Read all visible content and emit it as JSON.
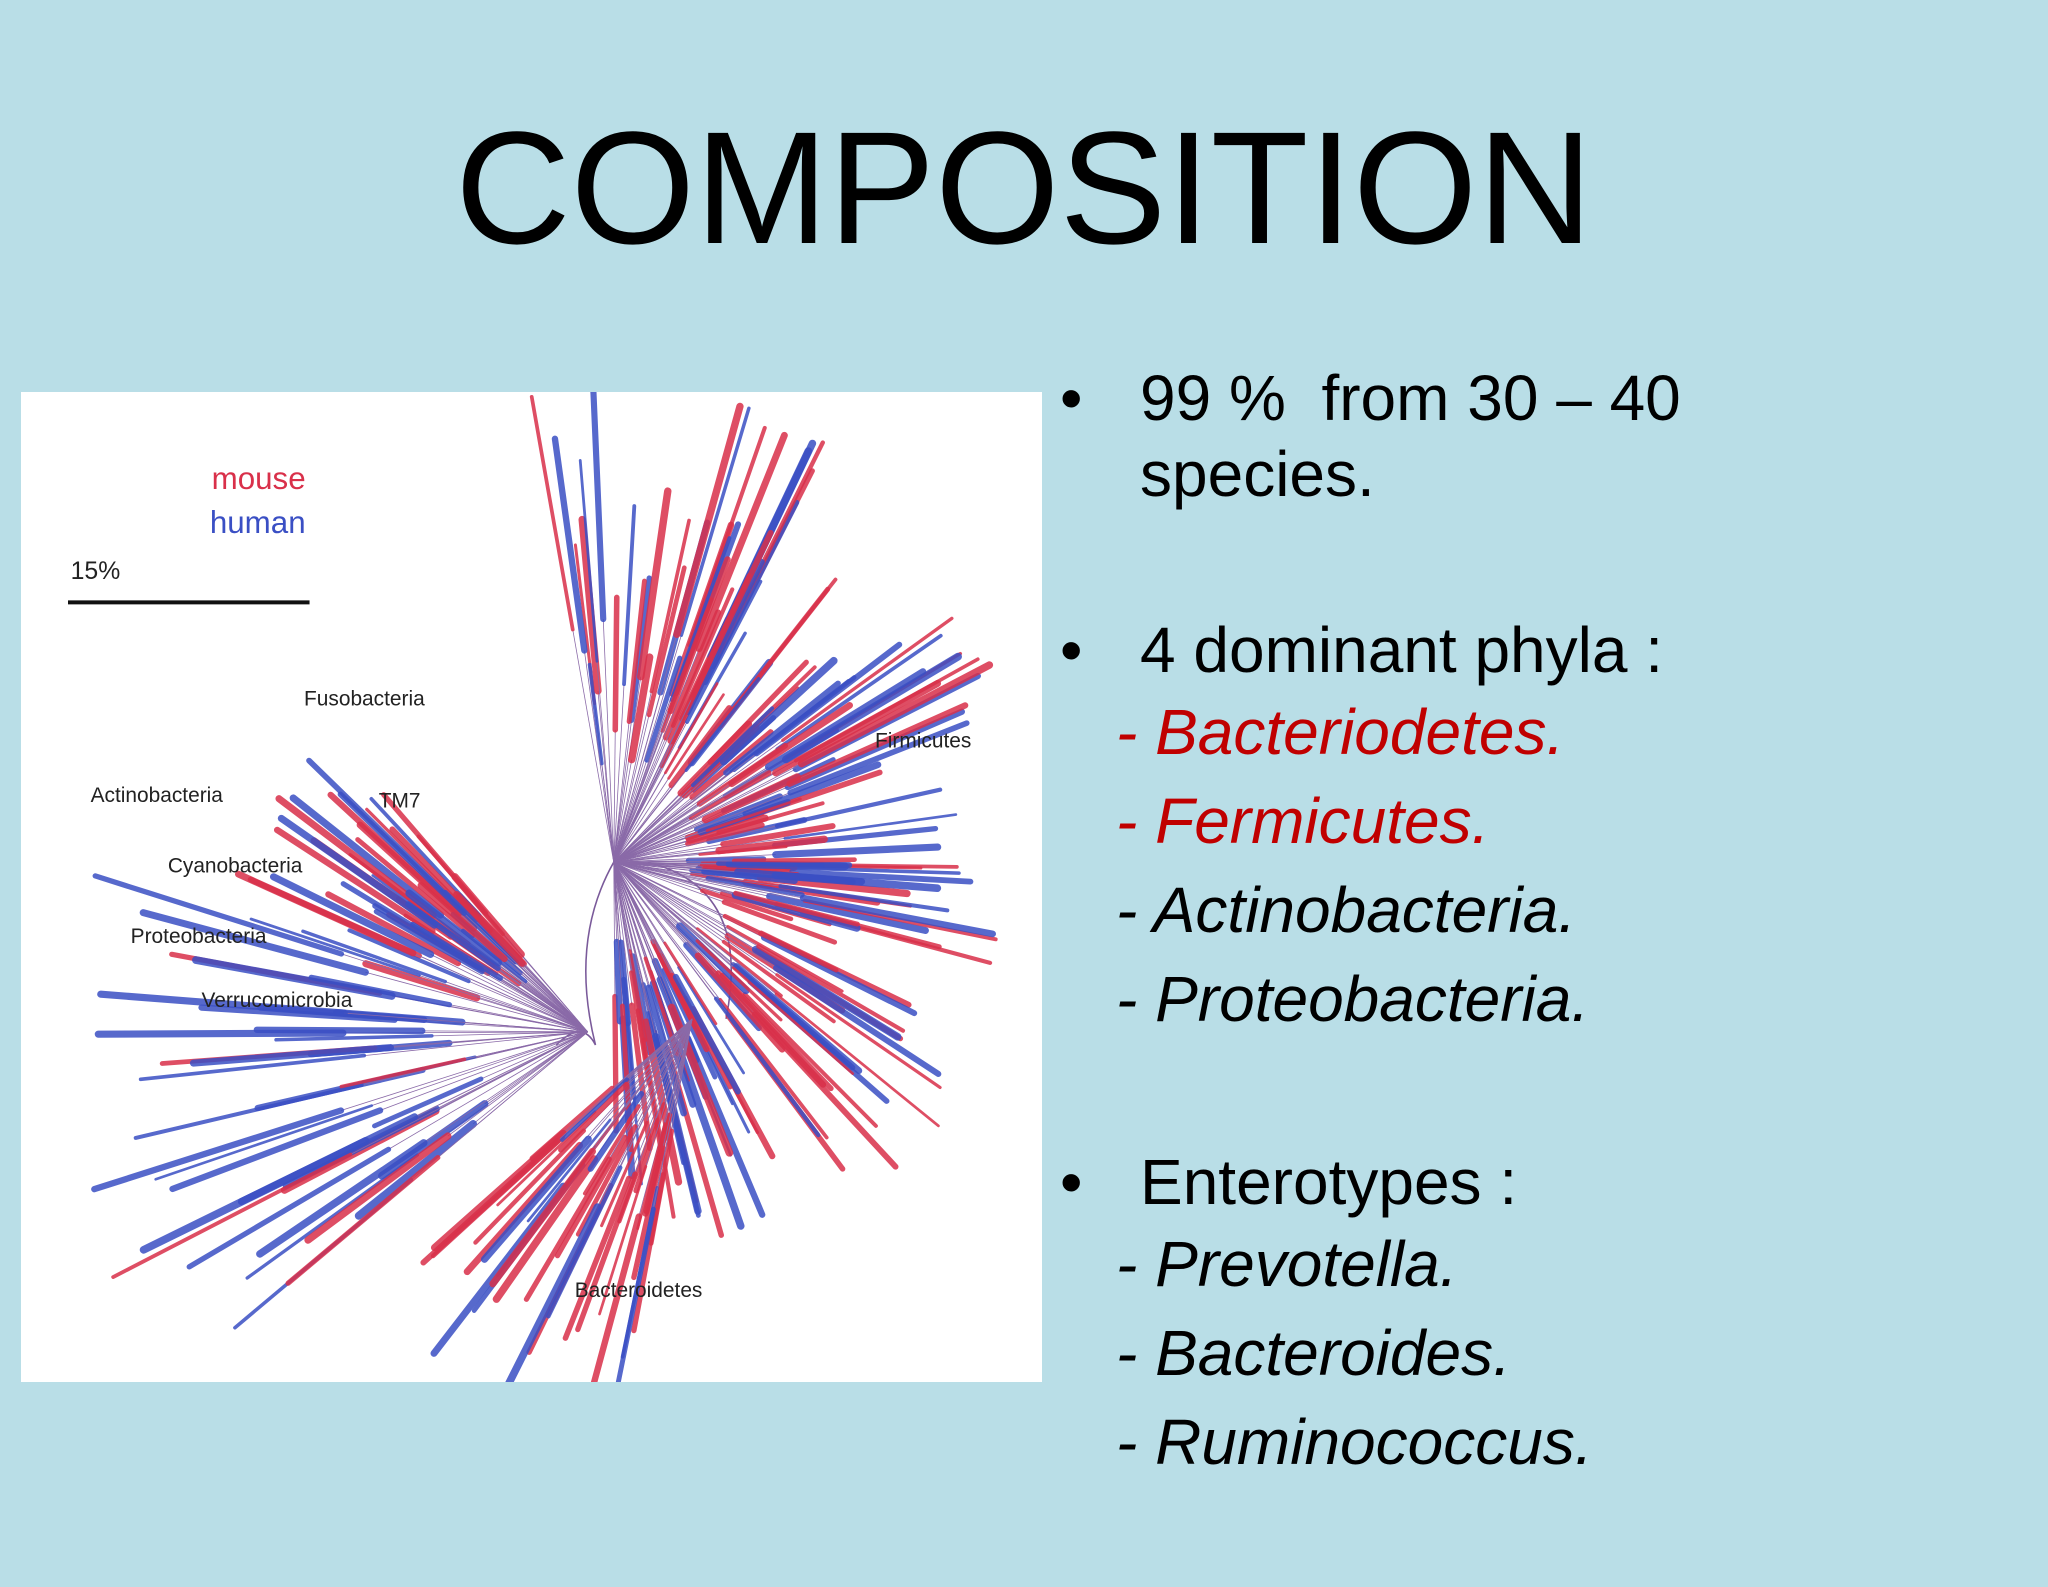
{
  "title": "COMPOSITION",
  "figure": {
    "legend": [
      {
        "text": "mouse",
        "color": "#d9304a"
      },
      {
        "text": "human",
        "color": "#3a4fc4"
      }
    ],
    "scale_label": "15%",
    "labels": [
      "Fusobacteria",
      "Firmicutes",
      "Actinobacteria",
      "TM7",
      "Cyanobacteria",
      "Proteobacteria",
      "Verrucomicrobia",
      "Bacteroidetes"
    ]
  },
  "bullets": [
    {
      "text": "99 %  from 30 – 40 species.",
      "items": []
    },
    {
      "text": "4 dominant phyla :",
      "items": [
        {
          "text": "- Bacteriodetes.",
          "color": "#c00000"
        },
        {
          "text": "- Fermicutes.",
          "color": "#c00000"
        },
        {
          "text": "- Actinobacteria.",
          "color": "#000000"
        },
        {
          "text": "- Proteobacteria.",
          "color": "#000000"
        }
      ]
    },
    {
      "text": "Enterotypes :",
      "items": [
        {
          "text": "- Prevotella.",
          "color": "#000000"
        },
        {
          "text": "- Bacteroides.",
          "color": "#000000"
        },
        {
          "text": "- Ruminococcus.",
          "color": "#000000"
        }
      ]
    }
  ]
}
